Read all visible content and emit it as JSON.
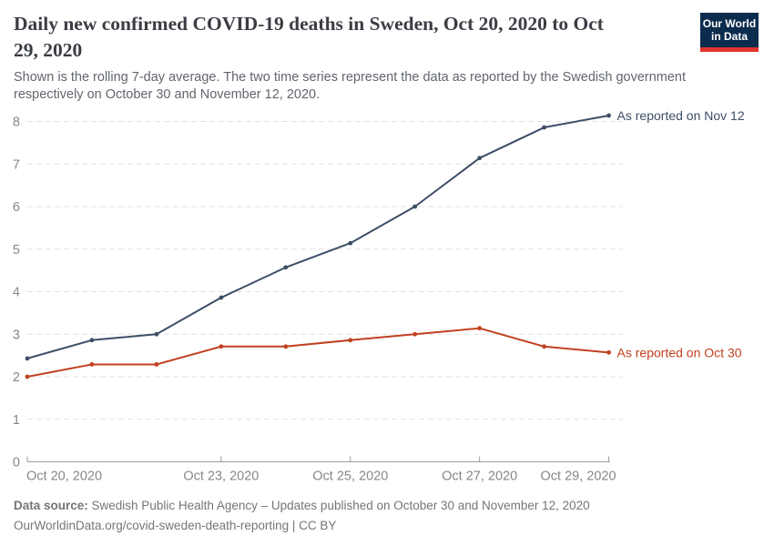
{
  "header": {
    "title": "Daily new confirmed COVID-19 deaths in Sweden, Oct 20, 2020 to Oct\n29, 2020",
    "subtitle": "Shown is the rolling 7-day average. The two time series represent the data as reported by the Swedish government\nrespectively on October 30 and November 12, 2020.",
    "logo": {
      "line1": "Our World",
      "line2": "in Data",
      "bg_color": "#0c2c4d",
      "bar_color": "#e0352c"
    }
  },
  "chart_data": {
    "type": "line",
    "title": "Daily new confirmed COVID-19 deaths in Sweden, Oct 20, 2020 to Oct 29, 2020",
    "x": [
      "Oct 20, 2020",
      "Oct 21, 2020",
      "Oct 22, 2020",
      "Oct 23, 2020",
      "Oct 24, 2020",
      "Oct 25, 2020",
      "Oct 26, 2020",
      "Oct 27, 2020",
      "Oct 28, 2020",
      "Oct 29, 2020"
    ],
    "series": [
      {
        "name": "As reported on Nov 12",
        "color": "#3d4e66",
        "values": [
          2.43,
          2.86,
          3.0,
          3.86,
          4.57,
          5.14,
          6.0,
          7.14,
          7.86,
          8.14
        ]
      },
      {
        "name": "As reported on Oct 30",
        "color": "#c2401f",
        "values": [
          2.0,
          2.29,
          2.29,
          2.71,
          2.71,
          2.86,
          3.0,
          3.14,
          2.71,
          2.57
        ]
      }
    ],
    "ylim": [
      0,
      8.3
    ],
    "yticks": [
      0,
      1,
      2,
      3,
      4,
      5,
      6,
      7,
      8
    ],
    "x_tick_labels": [
      "Oct 20, 2020",
      "Oct 23, 2020",
      "Oct 25, 2020",
      "Oct 27, 2020",
      "Oct 29, 2020"
    ],
    "x_tick_indices": [
      0,
      3,
      5,
      7,
      9
    ],
    "grid": "horizontal-dashed",
    "legend_position": "labels-at-line-ends",
    "grid_color": "#e0e0e0",
    "axis_color": "#9c9c9c",
    "tick_label_color": "#878787"
  },
  "footer": {
    "source_label": "Data source:",
    "source_text": " Swedish Public Health Agency – Updates published on October 30 and November 12, 2020",
    "link_line": "OurWorldinData.org/covid-sweden-death-reporting | CC BY"
  }
}
